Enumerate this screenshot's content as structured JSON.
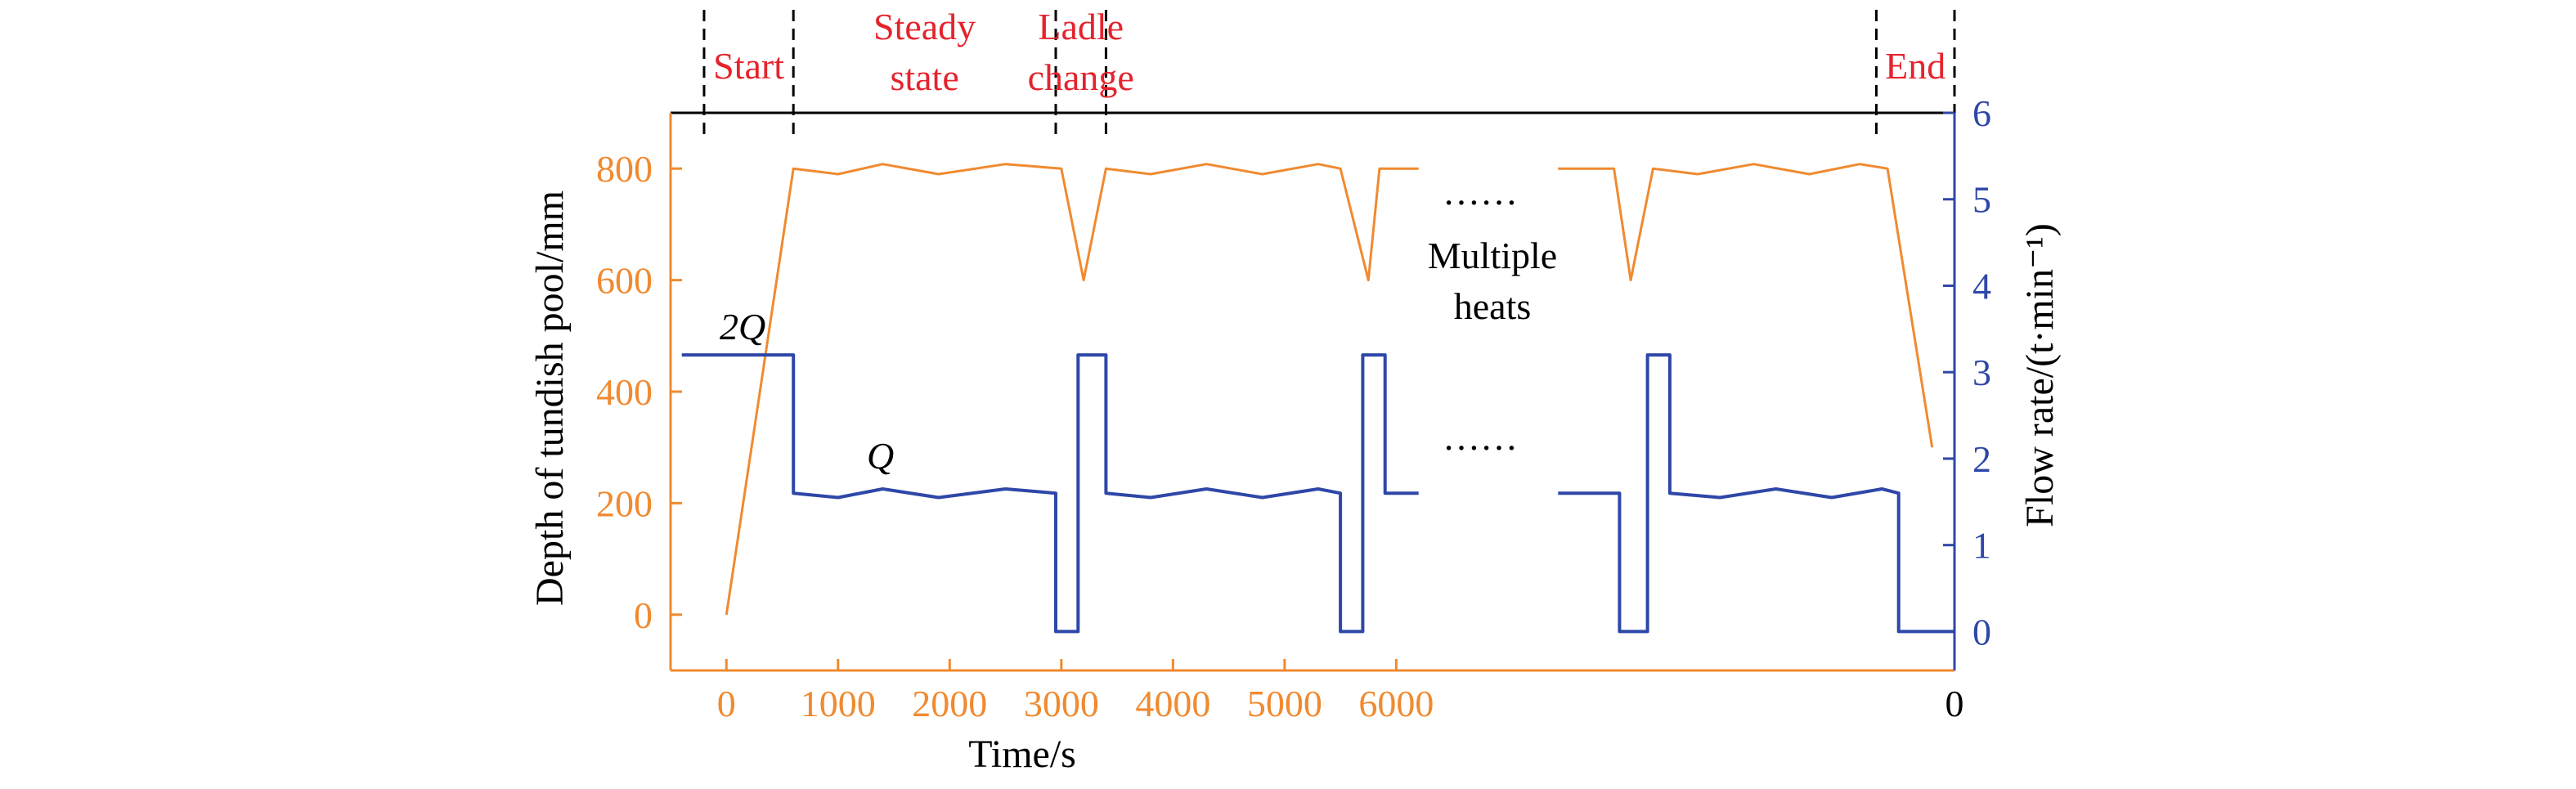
{
  "chart_data": {
    "type": "line",
    "xlabel": "Time/s",
    "ylabel_left": "Depth of tundish pool/mm",
    "ylabel_right": "Flow rate/(t·min⁻¹)",
    "x_ticks": [
      "0",
      "1000",
      "2000",
      "3000",
      "4000",
      "5000",
      "6000"
    ],
    "x_tick_end": "0",
    "xlim": [
      -500,
      11000
    ],
    "ylim_left": [
      -100,
      900
    ],
    "ylim_right": [
      -0.45,
      6
    ],
    "y_ticks_left": [
      "0",
      "200",
      "400",
      "600",
      "800"
    ],
    "y_ticks_right": [
      "0",
      "1",
      "2",
      "3",
      "4",
      "5",
      "6"
    ],
    "phases": [
      {
        "label_lines": [
          "Start"
        ]
      },
      {
        "label_lines": [
          "Steady",
          "state"
        ]
      },
      {
        "label_lines": [
          "Ladle",
          "change"
        ]
      },
      {
        "label_lines": [
          "End"
        ]
      }
    ],
    "phase_boundaries_s": [
      -200,
      600,
      2950,
      3400,
      10300,
      11000
    ],
    "annotations": {
      "dots_top": "……",
      "multiple_heats": [
        "Multiple",
        "heats"
      ],
      "dots_mid": "……",
      "label_2Q": "2Q",
      "label_Q": "Q"
    },
    "series": [
      {
        "axis": "left",
        "color": "#F08A30",
        "segments": [
          [
            [
              0,
              0
            ],
            [
              600,
              800
            ],
            [
              1000,
              790
            ],
            [
              1400,
              808
            ],
            [
              1900,
              790
            ],
            [
              2500,
              808
            ],
            [
              3000,
              800
            ],
            [
              3200,
              600
            ],
            [
              3400,
              800
            ],
            [
              3800,
              790
            ],
            [
              4300,
              808
            ],
            [
              4800,
              790
            ],
            [
              5300,
              808
            ],
            [
              5500,
              800
            ],
            [
              5750,
              600
            ],
            [
              5850,
              800
            ],
            [
              6200,
              800
            ]
          ],
          [
            [
              7450,
              800
            ],
            [
              7950,
              800
            ],
            [
              8100,
              600
            ],
            [
              8300,
              800
            ],
            [
              8700,
              790
            ],
            [
              9200,
              808
            ],
            [
              9700,
              790
            ],
            [
              10150,
              808
            ],
            [
              10400,
              800
            ],
            [
              10800,
              300
            ]
          ]
        ]
      },
      {
        "axis": "right",
        "color": "#2E47A8",
        "segments": [
          [
            [
              -400,
              3.2
            ],
            [
              600,
              3.2
            ],
            [
              600,
              1.6
            ],
            [
              1000,
              1.55
            ],
            [
              1400,
              1.65
            ],
            [
              1900,
              1.55
            ],
            [
              2500,
              1.65
            ],
            [
              2950,
              1.6
            ],
            [
              2950,
              0
            ],
            [
              3150,
              0
            ],
            [
              3150,
              3.2
            ],
            [
              3400,
              3.2
            ],
            [
              3400,
              1.6
            ],
            [
              3800,
              1.55
            ],
            [
              4300,
              1.65
            ],
            [
              4800,
              1.55
            ],
            [
              5300,
              1.65
            ],
            [
              5500,
              1.6
            ],
            [
              5500,
              0
            ],
            [
              5700,
              0
            ],
            [
              5700,
              3.2
            ],
            [
              5900,
              3.2
            ],
            [
              5900,
              1.6
            ],
            [
              6200,
              1.6
            ]
          ],
          [
            [
              7450,
              1.6
            ],
            [
              8000,
              1.6
            ],
            [
              8000,
              0
            ],
            [
              8250,
              0
            ],
            [
              8250,
              3.2
            ],
            [
              8450,
              3.2
            ],
            [
              8450,
              1.6
            ],
            [
              8900,
              1.55
            ],
            [
              9400,
              1.65
            ],
            [
              9900,
              1.55
            ],
            [
              10350,
              1.65
            ],
            [
              10500,
              1.6
            ],
            [
              10500,
              0
            ],
            [
              11000,
              0
            ]
          ]
        ]
      }
    ]
  }
}
